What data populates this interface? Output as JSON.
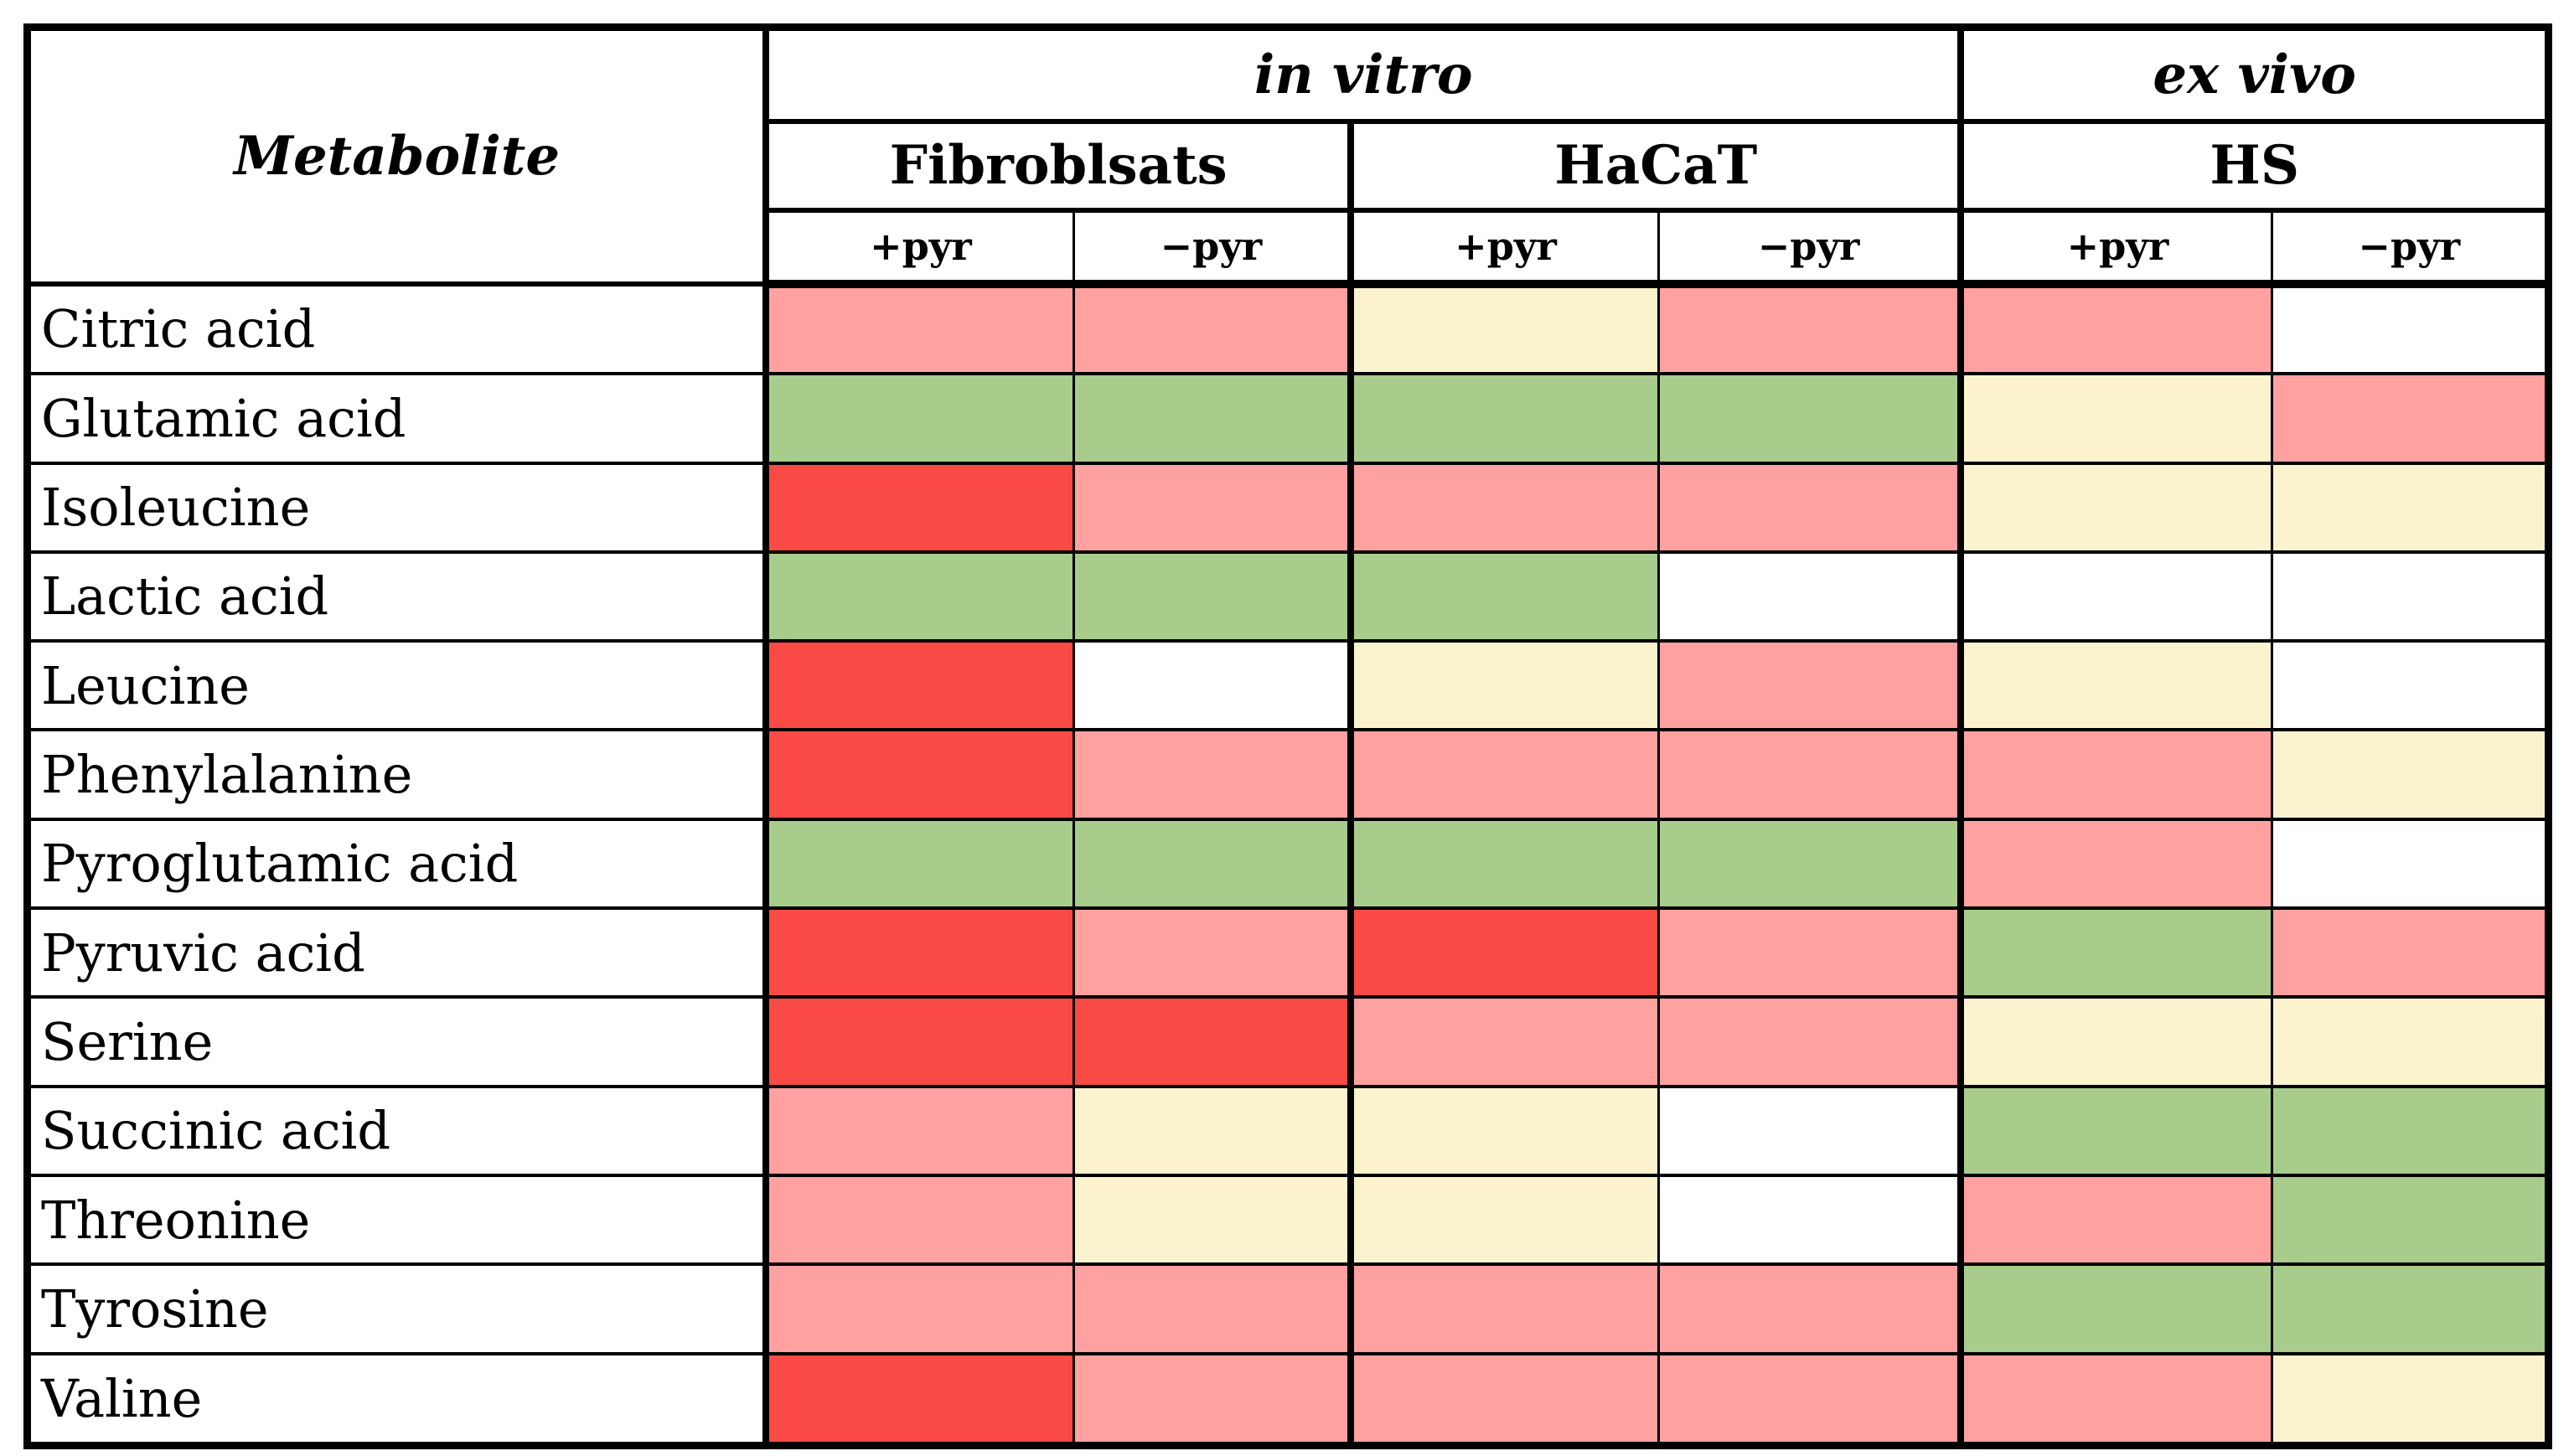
{
  "header": {
    "corner": "Metabolite",
    "groups": [
      {
        "label": "in vitro"
      },
      {
        "label": "ex vivo"
      }
    ],
    "cell_types": [
      {
        "label": "Fibroblsats"
      },
      {
        "label": "HaCaT"
      },
      {
        "label": "HS"
      }
    ],
    "conditions": [
      "+pyr",
      "−pyr",
      "+pyr",
      "−pyr",
      "+pyr",
      "−pyr"
    ]
  },
  "chart_data": {
    "type": "heatmap",
    "title": "",
    "row_label_header": "Metabolite",
    "column_groups": [
      {
        "group": "in vitro",
        "cell_type": "Fibroblsats",
        "conditions": [
          "+pyr",
          "−pyr"
        ]
      },
      {
        "group": "in vitro",
        "cell_type": "HaCaT",
        "conditions": [
          "+pyr",
          "−pyr"
        ]
      },
      {
        "group": "ex vivo",
        "cell_type": "HS",
        "conditions": [
          "+pyr",
          "−pyr"
        ]
      }
    ],
    "columns": [
      "Fibroblsats +pyr",
      "Fibroblsats −pyr",
      "HaCaT +pyr",
      "HaCaT −pyr",
      "HS +pyr",
      "HS −pyr"
    ],
    "palette": {
      "red": "#FA4A45",
      "pink": "#FEA1A0",
      "green": "#A7CC8B",
      "cream": "#FBF2CE",
      "white": "#FFFFFF"
    },
    "rows": [
      {
        "metabolite": "Citric acid",
        "values": [
          "pink",
          "pink",
          "cream",
          "pink",
          "pink",
          "white"
        ]
      },
      {
        "metabolite": "Glutamic acid",
        "values": [
          "green",
          "green",
          "green",
          "green",
          "cream",
          "pink"
        ]
      },
      {
        "metabolite": "Isoleucine",
        "values": [
          "red",
          "pink",
          "pink",
          "pink",
          "cream",
          "cream"
        ]
      },
      {
        "metabolite": "Lactic acid",
        "values": [
          "green",
          "green",
          "green",
          "white",
          "white",
          "white"
        ]
      },
      {
        "metabolite": "Leucine",
        "values": [
          "red",
          "white",
          "cream",
          "pink",
          "cream",
          "white"
        ]
      },
      {
        "metabolite": "Phenylalanine",
        "values": [
          "red",
          "pink",
          "pink",
          "pink",
          "pink",
          "cream"
        ]
      },
      {
        "metabolite": "Pyroglutamic acid",
        "values": [
          "green",
          "green",
          "green",
          "green",
          "pink",
          "white"
        ]
      },
      {
        "metabolite": "Pyruvic acid",
        "values": [
          "red",
          "pink",
          "red",
          "pink",
          "green",
          "pink"
        ]
      },
      {
        "metabolite": "Serine",
        "values": [
          "red",
          "red",
          "pink",
          "pink",
          "cream",
          "cream"
        ]
      },
      {
        "metabolite": "Succinic acid",
        "values": [
          "pink",
          "cream",
          "cream",
          "white",
          "green",
          "green"
        ]
      },
      {
        "metabolite": "Threonine",
        "values": [
          "pink",
          "cream",
          "cream",
          "white",
          "pink",
          "green"
        ]
      },
      {
        "metabolite": "Tyrosine",
        "values": [
          "pink",
          "pink",
          "pink",
          "pink",
          "green",
          "green"
        ]
      },
      {
        "metabolite": "Valine",
        "values": [
          "red",
          "pink",
          "pink",
          "pink",
          "pink",
          "cream"
        ]
      }
    ]
  }
}
